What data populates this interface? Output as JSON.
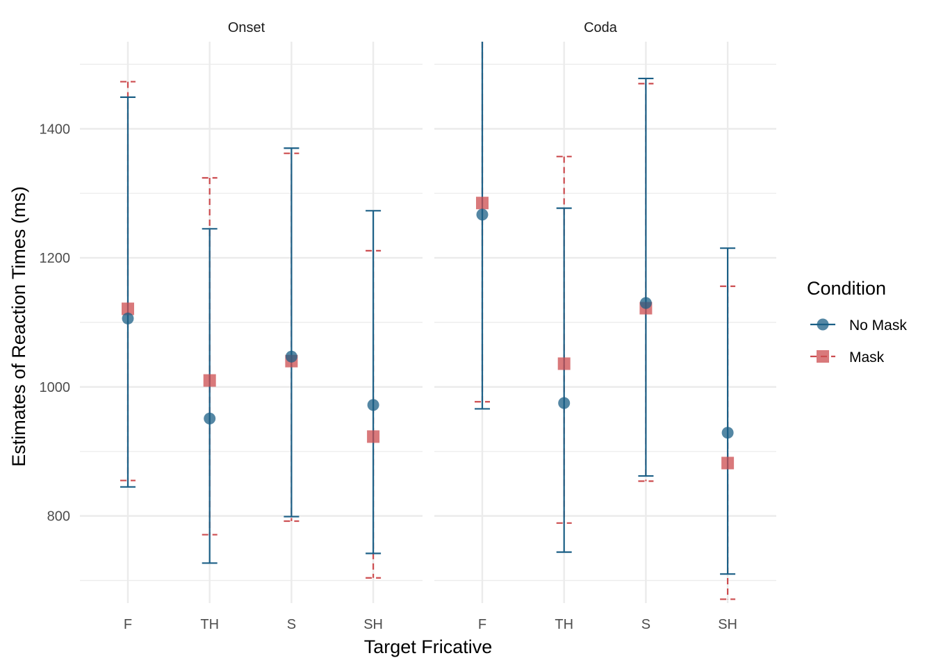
{
  "chart_data": {
    "type": "scatter",
    "xlabel": "Target Fricative",
    "ylabel": "Estimates of Reaction Times (ms)",
    "categories": [
      "F",
      "TH",
      "S",
      "SH"
    ],
    "ylim": [
      665,
      1535
    ],
    "yticks": [
      800,
      1000,
      1200,
      1400
    ],
    "grid": true,
    "legend": {
      "title": "Condition",
      "position": "right"
    },
    "colors": {
      "No Mask": "#1b5f86",
      "Mask": "#cc4c4f"
    },
    "panels": [
      {
        "name": "Onset",
        "series": [
          {
            "name": "No Mask",
            "marker": "circle",
            "values": [
              1106,
              951,
              1047,
              972
            ],
            "lower": [
              845,
              727,
              799,
              742
            ],
            "upper": [
              1449,
              1245,
              1370,
              1273
            ]
          },
          {
            "name": "Mask",
            "marker": "square",
            "values": [
              1121,
              1010,
              1040,
              923
            ],
            "lower": [
              855,
              771,
              792,
              704
            ],
            "upper": [
              1473,
              1324,
              1362,
              1211
            ]
          }
        ]
      },
      {
        "name": "Coda",
        "series": [
          {
            "name": "No Mask",
            "marker": "circle",
            "values": [
              1267,
              975,
              1130,
              929
            ],
            "lower": [
              966,
              744,
              862,
              710
            ],
            "upper": [
              1540,
              1277,
              1478,
              1215
            ]
          },
          {
            "name": "Mask",
            "marker": "square",
            "values": [
              1285,
              1036,
              1122,
              882
            ],
            "lower": [
              977,
              789,
              854,
              671
            ],
            "upper": [
              1540,
              1357,
              1470,
              1156
            ]
          }
        ]
      }
    ]
  }
}
